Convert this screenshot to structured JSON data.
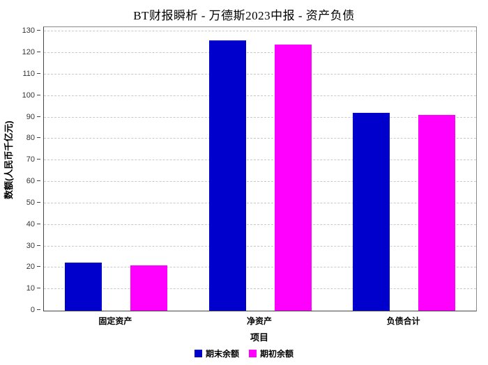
{
  "title": "BT财报瞬析 - 万德斯2023中报 - 资产负债",
  "chart_data": {
    "type": "bar",
    "categories": [
      "固定资产",
      "净资产",
      "负债合计"
    ],
    "series": [
      {
        "name": "期末余额",
        "color": "#0000cc",
        "values": [
          22.5,
          126,
          92
        ]
      },
      {
        "name": "期初余额",
        "color": "#ff00ff",
        "values": [
          21,
          124,
          91
        ]
      }
    ],
    "title": "BT财报瞬析 - 万德斯2023中报 - 资产负债",
    "xlabel": "项目",
    "ylabel": "数额(人民币千亿元)",
    "ylim": [
      0,
      130
    ],
    "ytick_step": 10,
    "grid": "horizontal-dashed",
    "legend_position": "bottom"
  }
}
